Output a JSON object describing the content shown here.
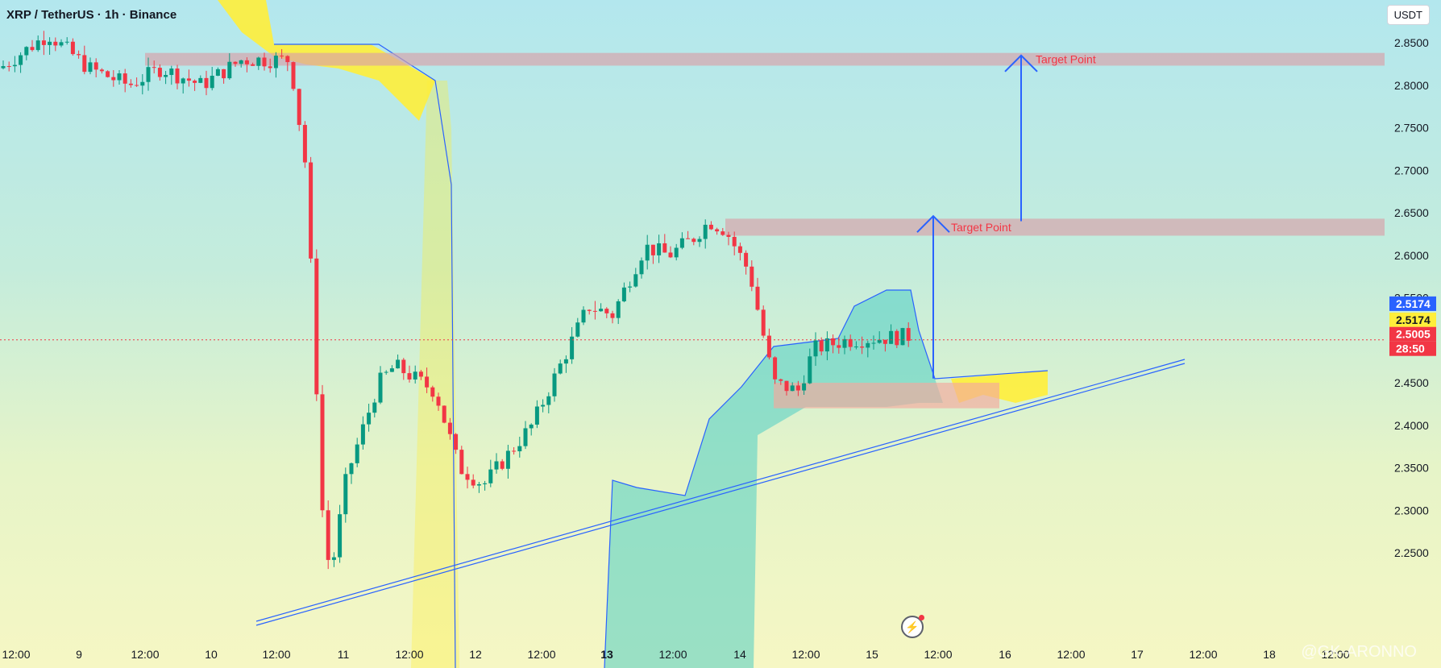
{
  "header": {
    "title": "XRP / TetherUS · 1h · Binance",
    "unit": "USDT"
  },
  "watermark": "@GK-ARONNO",
  "chart_data": {
    "type": "candlestick",
    "y_ticks": [
      "2.8500",
      "2.8000",
      "2.7500",
      "2.7000",
      "2.6500",
      "2.6000",
      "2.5500",
      "2.4500",
      "2.4000",
      "2.3500",
      "2.3000",
      "2.2500"
    ],
    "x_ticks": [
      "12:00",
      "9",
      "12:00",
      "10",
      "12:00",
      "11",
      "12:00",
      "12",
      "12:00",
      "13",
      "12:00",
      "14",
      "12:00",
      "15",
      "12:00",
      "16",
      "12:00",
      "17",
      "12:00",
      "18",
      "12:00"
    ],
    "price_labels": [
      {
        "text": "2.5174",
        "kind": "senkou-b"
      },
      {
        "text": "2.5174",
        "kind": "senkou-a"
      },
      {
        "text": "2.5005",
        "kind": "last"
      },
      {
        "text": "28:50",
        "kind": "countdown"
      }
    ],
    "annotations": [
      {
        "type": "zone",
        "y_range": [
          2.823,
          2.838
        ],
        "label": "Target Point"
      },
      {
        "type": "zone",
        "y_range": [
          2.623,
          2.643
        ],
        "label": "Target Point"
      },
      {
        "type": "zone",
        "y_range": [
          2.42,
          2.45
        ]
      }
    ],
    "last_price": 2.5005,
    "ylim": [
      2.24,
      2.88
    ],
    "colors": {
      "up": "#089981",
      "down": "#f23645",
      "target_arrow": "#2962ff",
      "cloud_bull": "#4ecdc4",
      "cloud_bear": "#ffee3a"
    }
  }
}
